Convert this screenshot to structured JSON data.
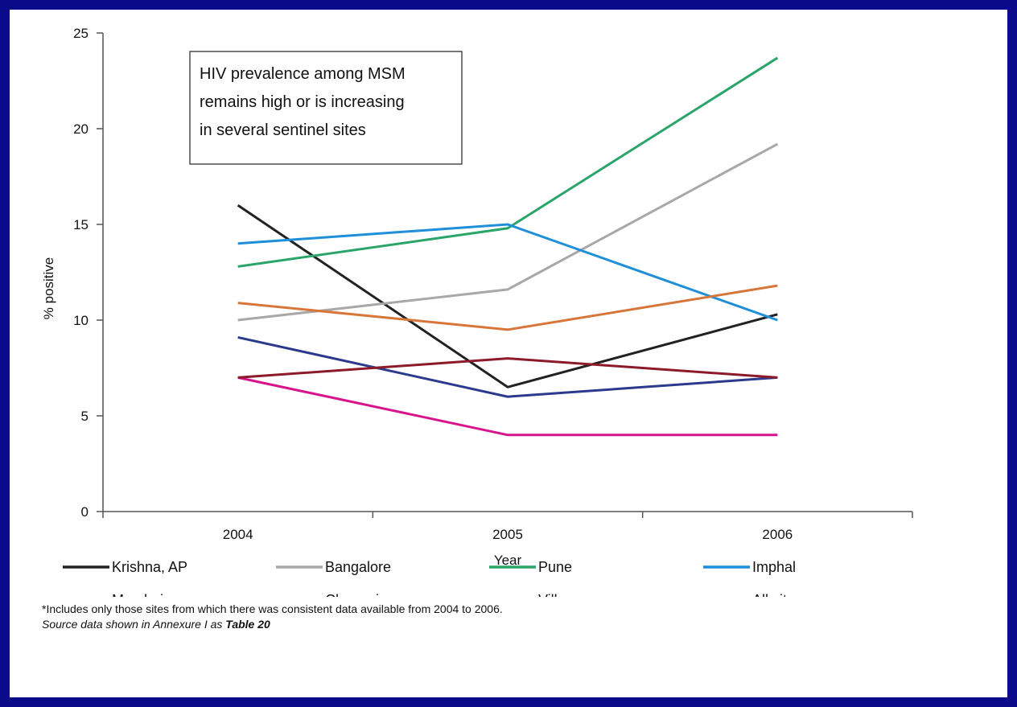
{
  "chart_data": {
    "type": "line",
    "title": "",
    "xlabel": "Year",
    "ylabel": "% positive",
    "categories": [
      "2004",
      "2005",
      "2006"
    ],
    "ylim": [
      0,
      25
    ],
    "yticks": [
      0,
      5,
      10,
      15,
      20,
      25
    ],
    "grid": false,
    "legend_position": "bottom",
    "annotation": "HIV prevalence among MSM remains high or is increasing in several sentinel sites",
    "annotation_lines": [
      "HIV prevalence among MSM",
      "remains high or is increasing",
      "in several sentinel sites"
    ],
    "series": [
      {
        "name": "Krishna, AP",
        "color": "#222222",
        "values": [
          16.0,
          6.5,
          10.3
        ]
      },
      {
        "name": "Bangalore",
        "color": "#a8a8a8",
        "values": [
          10.0,
          11.6,
          19.2
        ]
      },
      {
        "name": "Pune",
        "color": "#2aa56a",
        "values": [
          12.8,
          14.8,
          23.7
        ]
      },
      {
        "name": "Imphal",
        "color": "#1e8fd8",
        "values": [
          14.0,
          15.0,
          10.0
        ]
      },
      {
        "name": "Mumbai",
        "color": "#2b3a8c",
        "values": [
          9.1,
          6.0,
          7.0
        ]
      },
      {
        "name": "Chennai",
        "color": "#d8148c",
        "values": [
          7.0,
          4.0,
          4.0
        ]
      },
      {
        "name": "Villupuruam",
        "color": "#8c1a2a",
        "values": [
          7.0,
          8.0,
          7.0
        ]
      },
      {
        "name": "All sites average",
        "color": "#d8763a",
        "values": [
          10.9,
          9.5,
          11.8
        ]
      }
    ]
  },
  "footnote": "*Includes only those sites from which there was consistent data available from 2004 to 2006.",
  "source_prefix": "Source data shown in Annexure I as ",
  "source_table": "Table 20"
}
